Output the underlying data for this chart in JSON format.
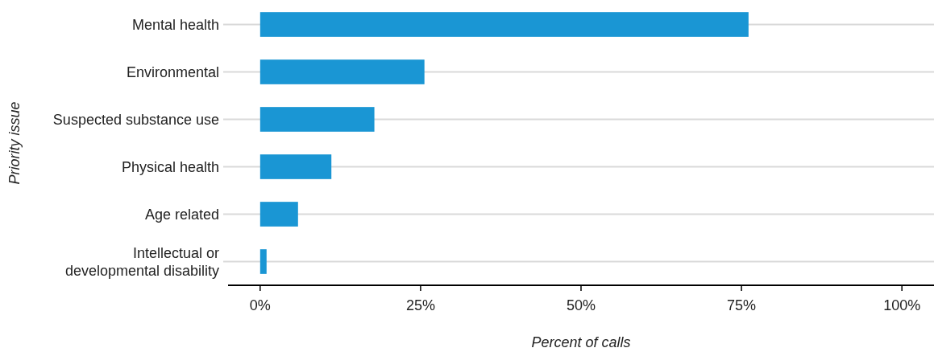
{
  "chart_data": {
    "type": "bar",
    "orientation": "horizontal",
    "xlabel": "Percent of calls",
    "ylabel": "Priority issue",
    "categories": [
      "Mental health",
      "Environmental",
      "Suspected substance use",
      "Physical health",
      "Age related",
      "Intellectual or developmental disability"
    ],
    "values": [
      76.1,
      25.6,
      17.8,
      11.1,
      5.9,
      1.0
    ],
    "color": "#1a96d4",
    "xlim": [
      -5,
      105
    ],
    "xticks": [
      {
        "value": 0,
        "label": "0%"
      },
      {
        "value": 25,
        "label": "25%"
      },
      {
        "value": 50,
        "label": "50%"
      },
      {
        "value": 75,
        "label": "75%"
      },
      {
        "value": 100,
        "label": "100%"
      }
    ],
    "grid": "y"
  }
}
